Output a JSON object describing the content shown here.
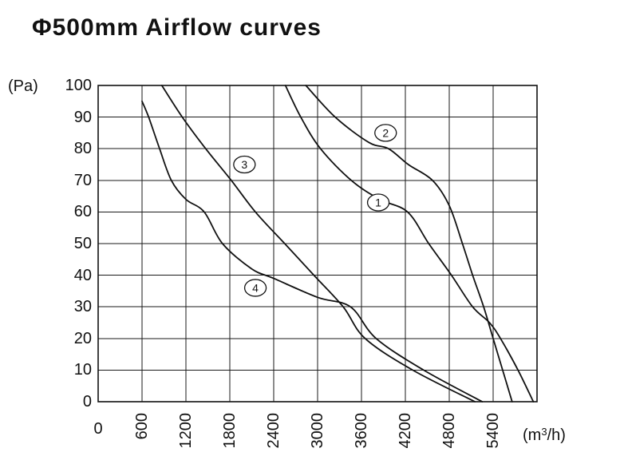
{
  "page": {
    "title": "Φ500mm Airflow curves",
    "background": "#ffffff"
  },
  "axes": {
    "y_unit": "(Pa)",
    "x_unit_prefix": "(m",
    "x_unit_sup": "3",
    "x_unit_suffix": "/h)",
    "y_ticks": [
      "100",
      "90",
      "80",
      "70",
      "60",
      "50",
      "40",
      "30",
      "20",
      "10",
      "0"
    ],
    "x_ticks": [
      "0",
      "600",
      "1200",
      "1800",
      "2400",
      "3000",
      "3600",
      "4200",
      "4800",
      "5400"
    ]
  },
  "colors": {
    "ink": "#111111",
    "grid": "#1a1a1a",
    "curve": "#111111",
    "label_fill": "#ffffff"
  },
  "chart_data": {
    "type": "line",
    "title": "Φ500mm Airflow curves",
    "xlabel": "(m³/h)",
    "ylabel": "(Pa)",
    "xlim": [
      0,
      6000
    ],
    "ylim": [
      0,
      100
    ],
    "x_tick_step": 600,
    "y_tick_step": 10,
    "grid": true,
    "legend": "circled numbers on curves",
    "series": [
      {
        "name": "curve-1",
        "label": "1",
        "label_pos": [
          3830,
          63
        ],
        "points": [
          [
            2560,
            100
          ],
          [
            2770,
            90
          ],
          [
            3040,
            80
          ],
          [
            3460,
            70
          ],
          [
            3850,
            64
          ],
          [
            4230,
            60
          ],
          [
            4520,
            50
          ],
          [
            4830,
            40
          ],
          [
            5120,
            30
          ],
          [
            5350,
            25
          ],
          [
            5500,
            20
          ],
          [
            5740,
            10
          ],
          [
            5950,
            0
          ]
        ]
      },
      {
        "name": "curve-2",
        "label": "2",
        "label_pos": [
          3930,
          85
        ],
        "points": [
          [
            2840,
            100
          ],
          [
            3240,
            90
          ],
          [
            3700,
            82
          ],
          [
            3970,
            80
          ],
          [
            4240,
            75
          ],
          [
            4570,
            70
          ],
          [
            4800,
            62
          ],
          [
            4980,
            50
          ],
          [
            5120,
            40
          ],
          [
            5270,
            30
          ],
          [
            5400,
            20
          ],
          [
            5530,
            10
          ],
          [
            5660,
            0
          ]
        ]
      },
      {
        "name": "curve-3",
        "label": "3",
        "label_pos": [
          2000,
          75
        ],
        "points": [
          [
            870,
            100
          ],
          [
            1150,
            90
          ],
          [
            1470,
            80
          ],
          [
            1820,
            70
          ],
          [
            2150,
            60
          ],
          [
            2550,
            50
          ],
          [
            2950,
            40
          ],
          [
            3350,
            30
          ],
          [
            3650,
            20
          ],
          [
            4300,
            10
          ],
          [
            5150,
            0
          ]
        ]
      },
      {
        "name": "curve-4",
        "label": "4",
        "label_pos": [
          2150,
          36
        ],
        "points": [
          [
            600,
            95
          ],
          [
            690,
            90
          ],
          [
            840,
            80
          ],
          [
            1000,
            70
          ],
          [
            1200,
            64
          ],
          [
            1450,
            60
          ],
          [
            1700,
            50
          ],
          [
            2100,
            42
          ],
          [
            2400,
            39
          ],
          [
            3000,
            33
          ],
          [
            3450,
            30
          ],
          [
            3800,
            20
          ],
          [
            4450,
            10
          ],
          [
            5250,
            0
          ]
        ]
      }
    ]
  }
}
